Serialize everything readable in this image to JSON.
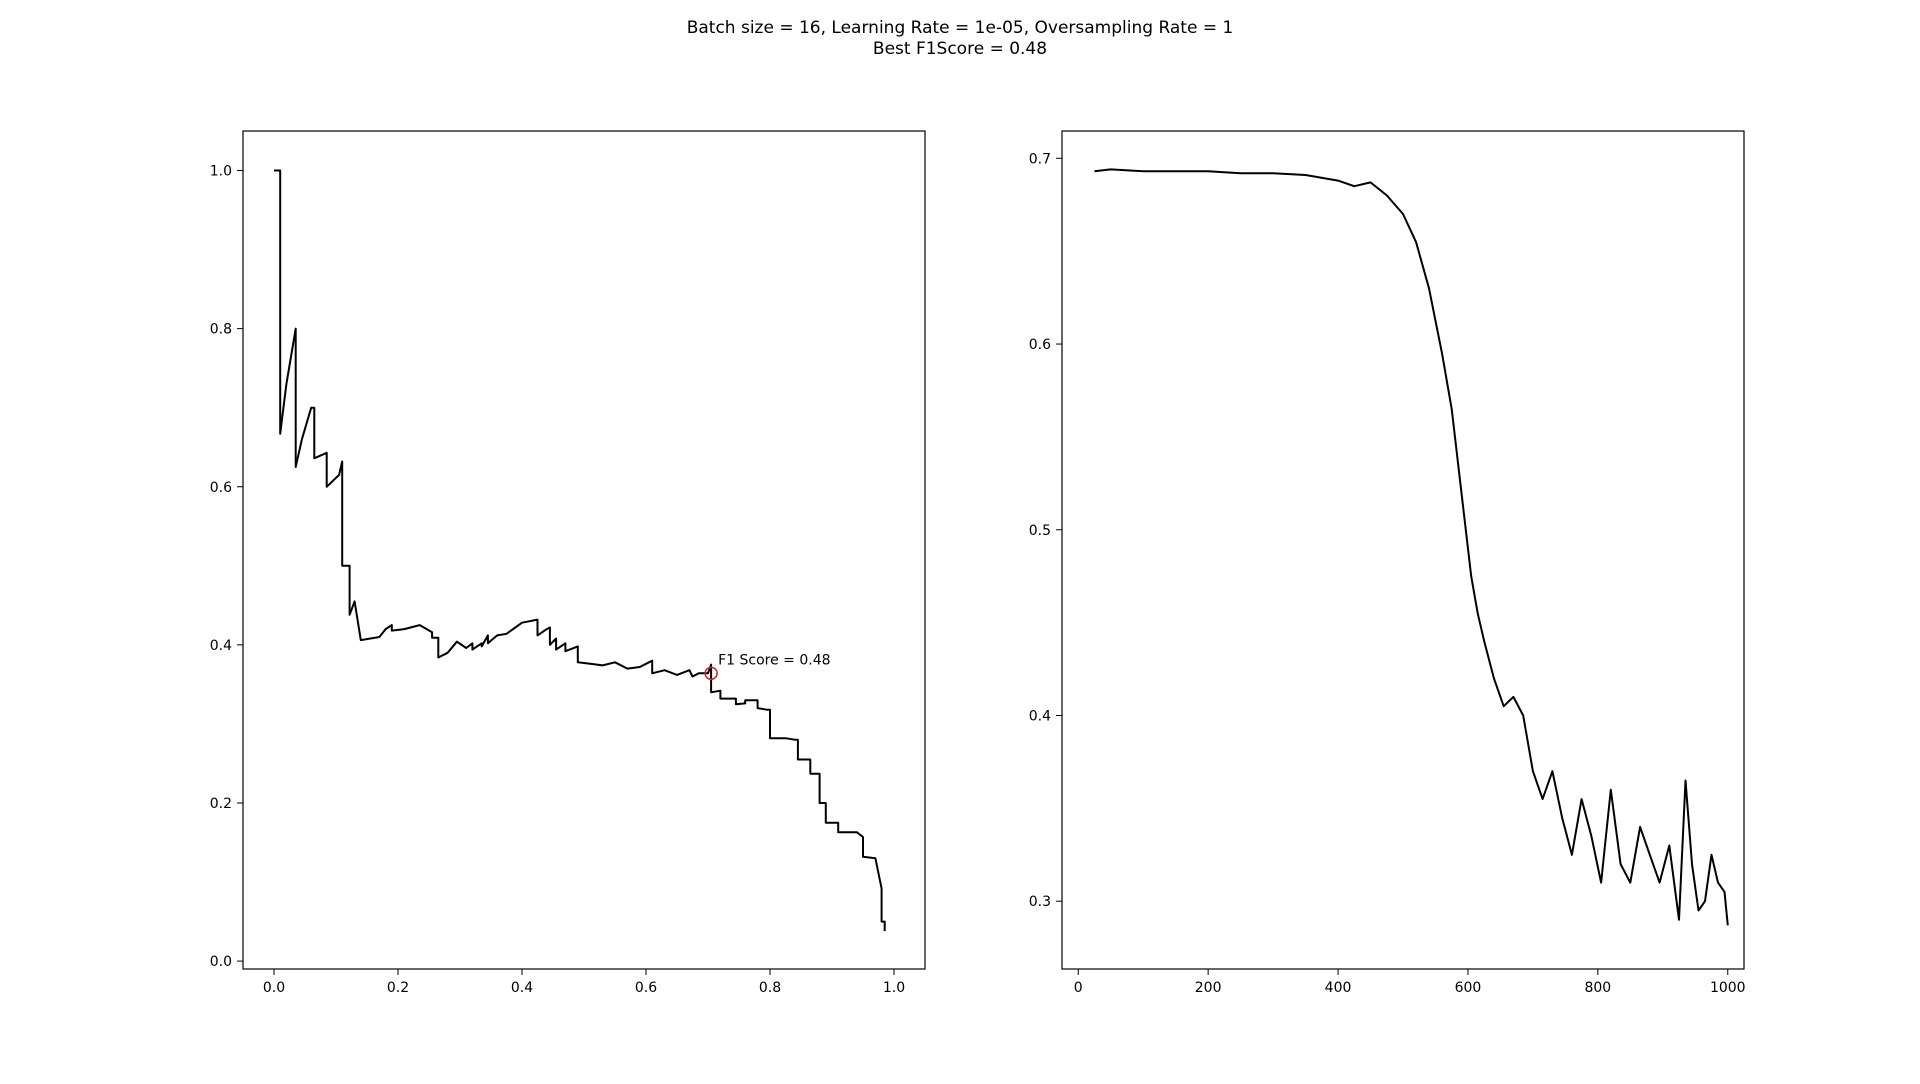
{
  "figure": {
    "title_line1": "Batch size = 16, Learning Rate = 1e-05, Oversampling Rate = 1",
    "title_line2": "Best F1Score = 0.48"
  },
  "colors": {
    "line": "#000000",
    "marker": "#d62728",
    "axes": "#000000",
    "background": "#ffffff"
  },
  "chart_data": [
    {
      "type": "line",
      "title": "",
      "xlabel": "",
      "ylabel": "",
      "xlim": [
        -0.05,
        1.05
      ],
      "ylim": [
        -0.01,
        1.05
      ],
      "xticks": [
        0.0,
        0.2,
        0.4,
        0.6,
        0.8,
        1.0
      ],
      "xtick_labels": [
        "0.0",
        "0.2",
        "0.4",
        "0.6",
        "0.8",
        "1.0"
      ],
      "yticks": [
        0.0,
        0.2,
        0.4,
        0.6,
        0.8,
        1.0
      ],
      "ytick_labels": [
        "0.0",
        "0.2",
        "0.4",
        "0.6",
        "0.8",
        "1.0"
      ],
      "grid": false,
      "series": [
        {
          "x": [
            0.0,
            0.01,
            0.01,
            0.02,
            0.035,
            0.035,
            0.045,
            0.06,
            0.065,
            0.065,
            0.085,
            0.085,
            0.105,
            0.11,
            0.11,
            0.122,
            0.122,
            0.13,
            0.14,
            0.14,
            0.17,
            0.18,
            0.19,
            0.19,
            0.21,
            0.235,
            0.255,
            0.255,
            0.265,
            0.265,
            0.28,
            0.295,
            0.31,
            0.32,
            0.32,
            0.335,
            0.335,
            0.345,
            0.345,
            0.36,
            0.375,
            0.4,
            0.425,
            0.425,
            0.44,
            0.445,
            0.445,
            0.455,
            0.455,
            0.47,
            0.47,
            0.49,
            0.49,
            0.51,
            0.53,
            0.55,
            0.57,
            0.59,
            0.61,
            0.61,
            0.63,
            0.65,
            0.67,
            0.675,
            0.685,
            0.7,
            0.705,
            0.705,
            0.72,
            0.72,
            0.745,
            0.745,
            0.76,
            0.76,
            0.78,
            0.78,
            0.795,
            0.8,
            0.8,
            0.82,
            0.825,
            0.84,
            0.845,
            0.845,
            0.865,
            0.865,
            0.88,
            0.88,
            0.89,
            0.89,
            0.91,
            0.91,
            0.93,
            0.94,
            0.95,
            0.95,
            0.97,
            0.97,
            0.98,
            0.98,
            0.985,
            0.985
          ],
          "y": [
            1.0,
            1.0,
            0.667,
            0.73,
            0.8,
            0.625,
            0.66,
            0.7,
            0.7,
            0.636,
            0.643,
            0.6,
            0.615,
            0.632,
            0.5,
            0.5,
            0.438,
            0.455,
            0.406,
            0.406,
            0.41,
            0.42,
            0.425,
            0.418,
            0.42,
            0.425,
            0.416,
            0.409,
            0.409,
            0.384,
            0.39,
            0.404,
            0.396,
            0.402,
            0.394,
            0.402,
            0.398,
            0.412,
            0.402,
            0.412,
            0.414,
            0.428,
            0.432,
            0.412,
            0.42,
            0.422,
            0.4,
            0.408,
            0.394,
            0.402,
            0.392,
            0.398,
            0.378,
            0.376,
            0.374,
            0.378,
            0.37,
            0.372,
            0.38,
            0.364,
            0.368,
            0.362,
            0.368,
            0.36,
            0.364,
            0.364,
            0.375,
            0.34,
            0.342,
            0.332,
            0.332,
            0.325,
            0.326,
            0.33,
            0.33,
            0.32,
            0.318,
            0.318,
            0.282,
            0.282,
            0.282,
            0.28,
            0.28,
            0.255,
            0.255,
            0.237,
            0.237,
            0.2,
            0.2,
            0.175,
            0.175,
            0.163,
            0.163,
            0.163,
            0.157,
            0.132,
            0.13,
            0.13,
            0.092,
            0.05,
            0.05,
            0.038
          ]
        }
      ],
      "annotations": [
        {
          "text": "F1 Score = 0.48",
          "x": 0.705,
          "y": 0.364
        }
      ]
    },
    {
      "type": "line",
      "title": "",
      "xlabel": "",
      "ylabel": "",
      "xlim": [
        -25,
        1025
      ],
      "ylim": [
        0.2635,
        0.7147
      ],
      "xticks": [
        0,
        200,
        400,
        600,
        800,
        1000
      ],
      "xtick_labels": [
        "0",
        "200",
        "400",
        "600",
        "800",
        "1000"
      ],
      "yticks": [
        0.3,
        0.4,
        0.5,
        0.6,
        0.7
      ],
      "ytick_labels": [
        "0.3",
        "0.4",
        "0.5",
        "0.6",
        "0.7"
      ],
      "grid": false,
      "series": [
        {
          "x": [
            25,
            50,
            100,
            150,
            200,
            250,
            300,
            350,
            400,
            425,
            450,
            475,
            500,
            520,
            540,
            560,
            575,
            585,
            595,
            605,
            615,
            625,
            640,
            655,
            670,
            685,
            700,
            715,
            730,
            745,
            760,
            775,
            790,
            805,
            820,
            835,
            850,
            865,
            880,
            895,
            910,
            925,
            935,
            945,
            955,
            965,
            975,
            985,
            995,
            1000
          ],
          "y": [
            0.693,
            0.694,
            0.693,
            0.693,
            0.693,
            0.692,
            0.692,
            0.691,
            0.688,
            0.685,
            0.687,
            0.68,
            0.67,
            0.655,
            0.63,
            0.595,
            0.565,
            0.535,
            0.505,
            0.475,
            0.455,
            0.44,
            0.42,
            0.405,
            0.41,
            0.4,
            0.37,
            0.355,
            0.37,
            0.345,
            0.325,
            0.355,
            0.335,
            0.31,
            0.36,
            0.32,
            0.31,
            0.34,
            0.325,
            0.31,
            0.33,
            0.29,
            0.365,
            0.32,
            0.295,
            0.3,
            0.325,
            0.31,
            0.305,
            0.287
          ]
        }
      ],
      "annotations": []
    }
  ]
}
